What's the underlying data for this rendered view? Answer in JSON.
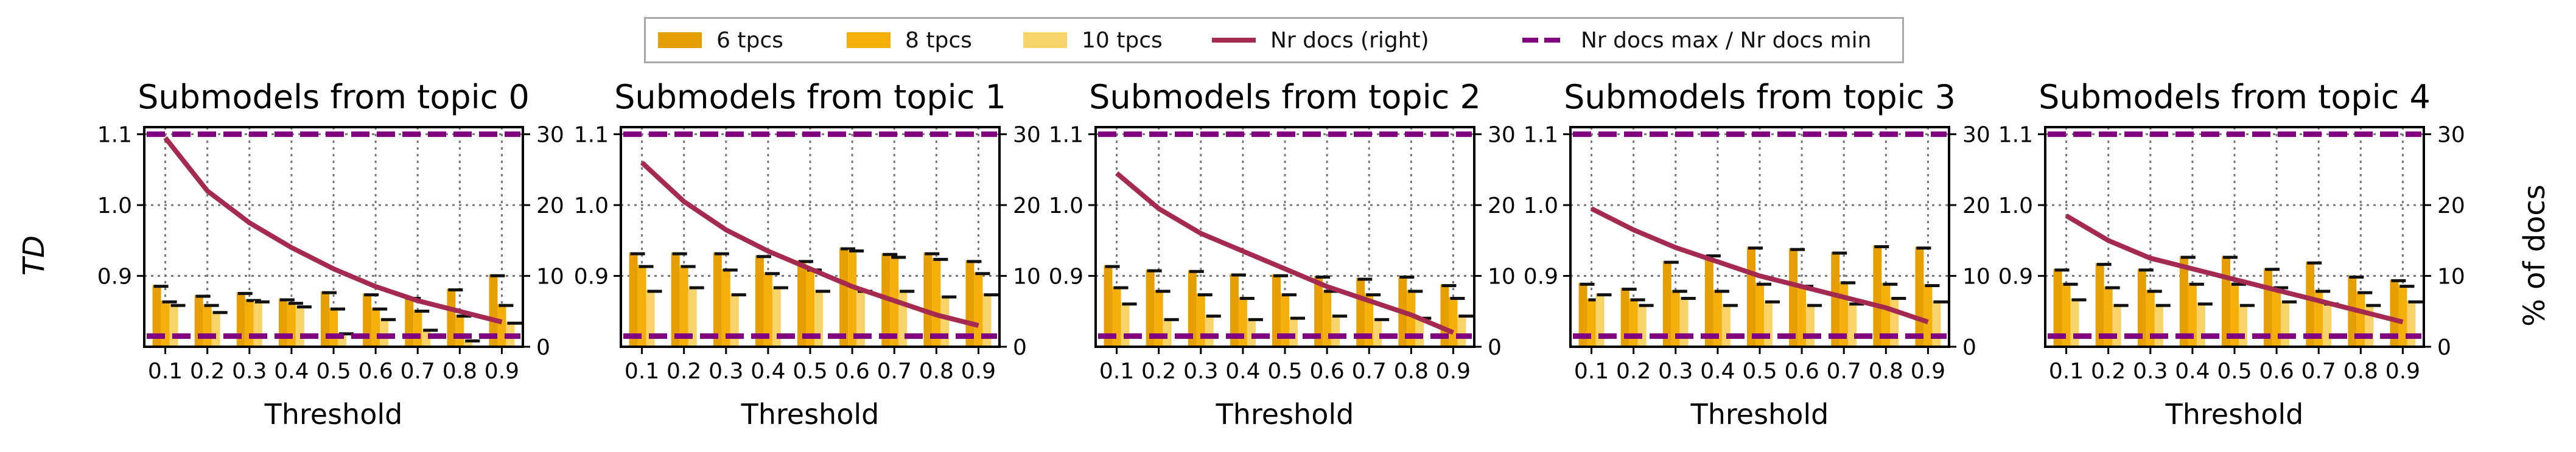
{
  "legend": {
    "items": [
      {
        "label": "6 tpcs",
        "kind": "rect",
        "color": "#E69F00"
      },
      {
        "label": "8 tpcs",
        "kind": "rect",
        "color": "#F5AF0A"
      },
      {
        "label": "10 tpcs",
        "kind": "rect",
        "color": "#F8D36A"
      },
      {
        "label": "Nr docs (right)",
        "kind": "line",
        "color": "#A42A4F"
      },
      {
        "label": "Nr docs max / Nr docs min",
        "kind": "dash",
        "color": "#800080"
      }
    ]
  },
  "axes": {
    "ylabel_left": "TD",
    "ylabel_right": "% of docs",
    "xlabel": "Threshold"
  },
  "chart_data": [
    {
      "type": "bar",
      "title": "Submodels from topic 0",
      "categories": [
        "0.1",
        "0.2",
        "0.3",
        "0.4",
        "0.5",
        "0.6",
        "0.7",
        "0.8",
        "0.9"
      ],
      "xlabel": "Threshold",
      "ylabel": "TD",
      "ylim": [
        0.8,
        1.11
      ],
      "yticks": [
        "0.9",
        "1.0",
        "1.1"
      ],
      "series": [
        {
          "name": "6 tpcs",
          "values": [
            0.887,
            0.873,
            0.877,
            0.868,
            0.878,
            0.875,
            0.87,
            0.882,
            0.902
          ]
        },
        {
          "name": "8 tpcs",
          "values": [
            0.865,
            0.86,
            0.867,
            0.863,
            0.855,
            0.855,
            0.852,
            0.845,
            0.86
          ]
        },
        {
          "name": "10 tpcs",
          "values": [
            0.86,
            0.85,
            0.865,
            0.858,
            0.82,
            0.84,
            0.825,
            0.81,
            0.835
          ]
        }
      ],
      "right_axis": {
        "ylabel": "% of docs",
        "ylim": [
          0,
          31
        ],
        "yticks": [
          "0",
          "10",
          "20",
          "30"
        ],
        "nr_docs": [
          29.5,
          22.0,
          17.5,
          14.0,
          11.0,
          8.5,
          6.5,
          5.0,
          3.5
        ],
        "nr_docs_max": 30,
        "nr_docs_min": 1.5
      }
    },
    {
      "type": "bar",
      "title": "Submodels from topic 1",
      "categories": [
        "0.1",
        "0.2",
        "0.3",
        "0.4",
        "0.5",
        "0.6",
        "0.7",
        "0.8",
        "0.9"
      ],
      "xlabel": "Threshold",
      "ylabel": "TD",
      "ylim": [
        0.8,
        1.11
      ],
      "series": [
        {
          "name": "6 tpcs",
          "values": [
            0.933,
            0.933,
            0.933,
            0.929,
            0.922,
            0.94,
            0.932,
            0.933,
            0.922
          ]
        },
        {
          "name": "8 tpcs",
          "values": [
            0.915,
            0.915,
            0.91,
            0.905,
            0.91,
            0.937,
            0.928,
            0.925,
            0.905
          ]
        },
        {
          "name": "10 tpcs",
          "values": [
            0.88,
            0.885,
            0.875,
            0.885,
            0.88,
            0.88,
            0.88,
            0.872,
            0.875
          ]
        }
      ],
      "right_axis": {
        "ylim": [
          0,
          31
        ],
        "yticks": [
          "0",
          "10",
          "20",
          "30"
        ],
        "nr_docs": [
          26.0,
          20.5,
          16.5,
          13.5,
          11.0,
          8.5,
          6.5,
          4.5,
          3.0
        ],
        "nr_docs_max": 30,
        "nr_docs_min": 1.5
      }
    },
    {
      "type": "bar",
      "title": "Submodels from topic 2",
      "categories": [
        "0.1",
        "0.2",
        "0.3",
        "0.4",
        "0.5",
        "0.6",
        "0.7",
        "0.8",
        "0.9"
      ],
      "xlabel": "Threshold",
      "ylabel": "TD",
      "ylim": [
        0.8,
        1.11
      ],
      "series": [
        {
          "name": "6 tpcs",
          "values": [
            0.915,
            0.909,
            0.908,
            0.903,
            0.902,
            0.9,
            0.897,
            0.9,
            0.888
          ]
        },
        {
          "name": "8 tpcs",
          "values": [
            0.885,
            0.88,
            0.875,
            0.87,
            0.875,
            0.88,
            0.875,
            0.88,
            0.87
          ]
        },
        {
          "name": "10 tpcs",
          "values": [
            0.862,
            0.84,
            0.845,
            0.84,
            0.842,
            0.845,
            0.84,
            0.842,
            0.845
          ]
        }
      ],
      "right_axis": {
        "ylim": [
          0,
          31
        ],
        "yticks": [
          "0",
          "10",
          "20",
          "30"
        ],
        "nr_docs": [
          24.5,
          19.5,
          16.0,
          13.5,
          11.0,
          8.5,
          6.5,
          4.5,
          2.0
        ],
        "nr_docs_max": 30,
        "nr_docs_min": 1.5
      }
    },
    {
      "type": "bar",
      "title": "Submodels from topic 3",
      "categories": [
        "0.1",
        "0.2",
        "0.3",
        "0.4",
        "0.5",
        "0.6",
        "0.7",
        "0.8",
        "0.9"
      ],
      "xlabel": "Threshold",
      "ylabel": "TD",
      "ylim": [
        0.8,
        1.11
      ],
      "series": [
        {
          "name": "6 tpcs",
          "values": [
            0.89,
            0.883,
            0.921,
            0.93,
            0.941,
            0.939,
            0.934,
            0.943,
            0.941
          ]
        },
        {
          "name": "8 tpcs",
          "values": [
            0.868,
            0.868,
            0.88,
            0.88,
            0.89,
            0.887,
            0.892,
            0.89,
            0.888
          ]
        },
        {
          "name": "10 tpcs",
          "values": [
            0.875,
            0.86,
            0.87,
            0.86,
            0.865,
            0.86,
            0.862,
            0.87,
            0.865
          ]
        }
      ],
      "right_axis": {
        "ylim": [
          0,
          31
        ],
        "yticks": [
          "0",
          "10",
          "20",
          "30"
        ],
        "nr_docs": [
          19.5,
          16.5,
          14.0,
          12.0,
          10.0,
          8.5,
          7.0,
          5.5,
          3.5
        ],
        "nr_docs_max": 30,
        "nr_docs_min": 1.5
      }
    },
    {
      "type": "bar",
      "title": "Submodels from topic 4",
      "categories": [
        "0.1",
        "0.2",
        "0.3",
        "0.4",
        "0.5",
        "0.6",
        "0.7",
        "0.8",
        "0.9"
      ],
      "xlabel": "Threshold",
      "ylabel": "TD",
      "ylim": [
        0.8,
        1.11
      ],
      "series": [
        {
          "name": "6 tpcs",
          "values": [
            0.91,
            0.918,
            0.91,
            0.928,
            0.928,
            0.911,
            0.92,
            0.9,
            0.895
          ]
        },
        {
          "name": "8 tpcs",
          "values": [
            0.89,
            0.885,
            0.88,
            0.89,
            0.89,
            0.885,
            0.88,
            0.878,
            0.887
          ]
        },
        {
          "name": "10 tpcs",
          "values": [
            0.868,
            0.86,
            0.86,
            0.862,
            0.86,
            0.865,
            0.862,
            0.86,
            0.865
          ]
        }
      ],
      "right_axis": {
        "ylim": [
          0,
          31
        ],
        "yticks": [
          "0",
          "10",
          "20",
          "30"
        ],
        "nr_docs": [
          18.5,
          15.0,
          12.5,
          11.0,
          9.5,
          8.0,
          6.5,
          5.0,
          3.5
        ],
        "nr_docs_max": 30,
        "nr_docs_min": 1.5
      }
    }
  ]
}
